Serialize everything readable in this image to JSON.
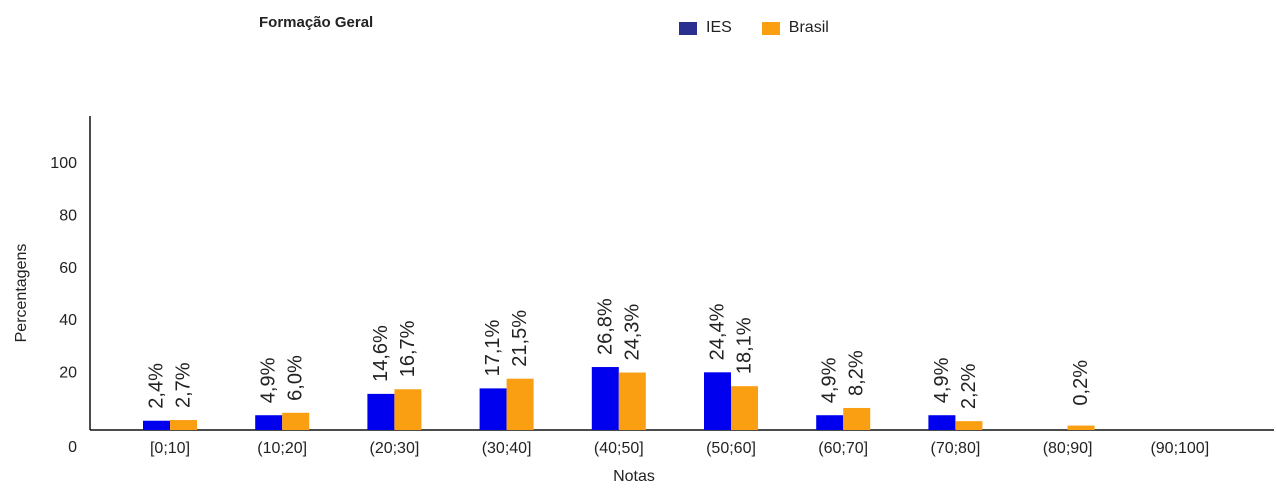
{
  "title": "Formação Geral",
  "legend": [
    {
      "name": "IES",
      "color": "#0000ee",
      "swatch": "#2b2f8f"
    },
    {
      "name": "Brasil",
      "color": "#f99f11",
      "swatch": "#f99f11"
    }
  ],
  "chart_data": {
    "type": "bar",
    "title": "Formação Geral",
    "xlabel": "Notas",
    "ylabel": "Percentagens",
    "ylim": [
      0,
      120
    ],
    "yticks": [
      0,
      20,
      40,
      60,
      80,
      100
    ],
    "grid": false,
    "legend_position": "top",
    "categories": [
      "[0;10]",
      "(10;20]",
      "(20;30]",
      "(30;40]",
      "(40;50]",
      "(50;60]",
      "(60;70]",
      "(70;80]",
      "(80;90]",
      "(90;100]"
    ],
    "series": [
      {
        "name": "IES",
        "color": "#0000ee",
        "values": [
          2.4,
          4.9,
          14.6,
          17.1,
          26.8,
          24.4,
          4.9,
          4.9,
          0,
          0
        ],
        "labels": [
          "2,4%",
          "4,9%",
          "14,6%",
          "17,1%",
          "26,8%",
          "24,4%",
          "4,9%",
          "4,9%",
          "",
          ""
        ]
      },
      {
        "name": "Brasil",
        "color": "#f99f11",
        "values": [
          2.7,
          6.0,
          16.7,
          21.5,
          24.3,
          18.1,
          8.2,
          2.2,
          0.2,
          0
        ],
        "labels": [
          "2,7%",
          "6,0%",
          "16,7%",
          "21,5%",
          "24,3%",
          "18,1%",
          "8,2%",
          "2,2%",
          "0,2%",
          ""
        ]
      }
    ]
  }
}
